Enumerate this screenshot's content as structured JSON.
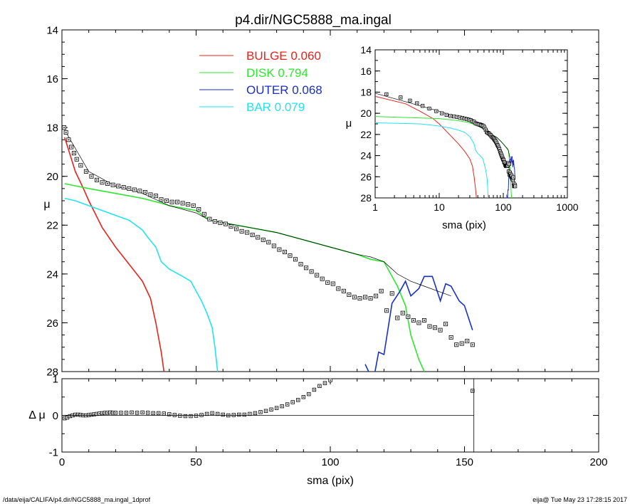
{
  "chart_data": [
    {
      "type": "scatter",
      "title": "p4.dir/NGC5888_ma.ingal",
      "xlabel": "",
      "ylabel": "μ",
      "xlim": [
        0,
        200
      ],
      "ylim": [
        28,
        14
      ],
      "y_inverted": true,
      "y_ticks": [
        14,
        16,
        18,
        20,
        22,
        24,
        26,
        28
      ],
      "x_ticks": [
        0,
        50,
        100,
        150,
        200
      ],
      "grid": false,
      "legend_position": "top-center",
      "legend": [
        {
          "label": "BULGE",
          "value": "0.060",
          "color": "#e8231c"
        },
        {
          "label": "DISK",
          "value": "0.794",
          "color": "#2ee62e"
        },
        {
          "label": "OUTER",
          "value": "0.068",
          "color": "#1a2fc8"
        },
        {
          "label": "BAR",
          "value": "0.079",
          "color": "#22e4f0"
        }
      ],
      "series": [
        {
          "name": "BULGE",
          "color": "#e8231c",
          "x": [
            1,
            3,
            5,
            8,
            10,
            15,
            20,
            25,
            30,
            33,
            35,
            37,
            38
          ],
          "y": [
            18.4,
            19.1,
            19.8,
            20.5,
            21.0,
            22.1,
            22.9,
            23.6,
            24.3,
            25.0,
            26.0,
            27.2,
            28.0
          ]
        },
        {
          "name": "DISK",
          "color": "#2ee62e",
          "x": [
            1,
            10,
            20,
            30,
            37,
            40,
            50,
            55,
            60,
            70,
            80,
            90,
            100,
            110,
            115,
            120,
            123,
            125,
            128,
            130,
            133,
            135
          ],
          "y": [
            20.3,
            20.5,
            20.7,
            20.9,
            21.1,
            21.2,
            21.4,
            21.8,
            21.9,
            22.1,
            22.3,
            22.6,
            22.9,
            23.2,
            23.4,
            23.5,
            24.1,
            24.5,
            25.3,
            26.5,
            27.5,
            28.0
          ]
        },
        {
          "name": "BAR",
          "color": "#22e4f0",
          "x": [
            1,
            5,
            10,
            15,
            20,
            25,
            30,
            32,
            35,
            37,
            40,
            45,
            48,
            50,
            52,
            54,
            56,
            57,
            58
          ],
          "y": [
            20.9,
            21.0,
            21.2,
            21.4,
            21.6,
            21.8,
            22.2,
            22.5,
            22.9,
            23.5,
            23.8,
            24.1,
            24.3,
            24.7,
            25.1,
            25.6,
            26.2,
            27.0,
            28.0
          ]
        },
        {
          "name": "OUTER",
          "color": "#1a2fc8",
          "x": [
            113,
            116,
            118,
            120,
            123,
            126,
            128,
            130,
            133,
            135,
            138,
            141,
            143,
            145,
            148,
            150,
            153
          ],
          "y": [
            27.7,
            28.4,
            27.2,
            27.3,
            25.2,
            24.7,
            24.3,
            24.9,
            24.6,
            24.1,
            24.1,
            25.1,
            24.4,
            24.5,
            25.1,
            25.3,
            26.3
          ]
        },
        {
          "name": "",
          "color": "#000000",
          "x": [
            1,
            10,
            20,
            30,
            40,
            50,
            55,
            60,
            70,
            80,
            90,
            100,
            110,
            115,
            120,
            125,
            130,
            135,
            140,
            145
          ],
          "y": [
            18.1,
            19.8,
            20.4,
            20.7,
            21.2,
            21.5,
            21.8,
            21.9,
            22.1,
            22.3,
            22.6,
            22.9,
            23.2,
            23.3,
            23.5,
            24.0,
            24.3,
            24.5,
            24.7,
            24.9
          ]
        },
        {
          "name": "",
          "type": "points",
          "color": "#000000",
          "x": [
            0.8,
            1.5,
            2.5,
            3.5,
            4.5,
            5.5,
            7,
            9,
            11,
            13,
            15,
            17,
            19,
            21,
            23,
            25,
            27,
            29,
            31,
            33,
            35,
            37,
            39,
            41,
            43,
            45,
            47,
            49,
            51,
            53,
            55,
            57,
            59,
            61,
            63,
            65,
            67,
            69,
            71,
            73,
            75,
            77,
            79,
            81,
            83,
            85,
            87,
            89,
            91,
            93,
            95,
            97,
            99,
            101,
            103,
            105,
            107,
            109,
            111,
            113,
            115,
            117,
            119,
            121,
            123,
            125,
            127,
            129,
            131,
            133,
            135,
            137,
            139,
            141,
            143,
            145,
            147,
            149,
            151,
            153
          ],
          "y": [
            18.0,
            18.2,
            18.5,
            18.8,
            19.05,
            19.3,
            19.55,
            19.8,
            20.0,
            20.15,
            20.25,
            20.3,
            20.35,
            20.4,
            20.45,
            20.5,
            20.55,
            20.6,
            20.65,
            20.75,
            20.8,
            20.95,
            21.0,
            21.05,
            21.05,
            21.1,
            21.15,
            21.2,
            21.35,
            21.55,
            21.75,
            21.85,
            21.9,
            21.95,
            22.05,
            22.15,
            22.25,
            22.3,
            22.4,
            22.5,
            22.6,
            22.7,
            22.85,
            23.0,
            23.1,
            23.25,
            23.4,
            23.6,
            23.75,
            23.9,
            24.05,
            24.2,
            24.35,
            24.4,
            24.6,
            24.7,
            24.85,
            24.95,
            25.0,
            24.95,
            25.0,
            24.9,
            24.7,
            25.5,
            24.8,
            25.8,
            25.6,
            25.75,
            25.9,
            26.0,
            25.9,
            26.15,
            26.2,
            26.3,
            26.05,
            26.6,
            26.9,
            26.85,
            26.75,
            26.9
          ]
        }
      ]
    },
    {
      "type": "scatter",
      "title": "",
      "xlabel": "sma (pix)",
      "ylabel": "Δ μ",
      "xlim": [
        0,
        200
      ],
      "ylim": [
        -1,
        1
      ],
      "y_ticks": [
        -1,
        0,
        1
      ],
      "x_ticks": [
        0,
        50,
        100,
        150,
        200
      ],
      "grid": false,
      "series": [
        {
          "name": "",
          "type": "points",
          "color": "#000000",
          "x": [
            1,
            2,
            3,
            4,
            5,
            6,
            7,
            8,
            9,
            10,
            11,
            12,
            13,
            14,
            15,
            16,
            17,
            18,
            19,
            20,
            22,
            24,
            26,
            28,
            30,
            32,
            34,
            36,
            38,
            40,
            42,
            44,
            46,
            48,
            50,
            52,
            54,
            56,
            58,
            60,
            62,
            64,
            66,
            68,
            70,
            72,
            74,
            76,
            78,
            80,
            82,
            84,
            86,
            88,
            90,
            92,
            94,
            96,
            98,
            100,
            153
          ],
          "y": [
            -0.08,
            -0.06,
            -0.02,
            0.0,
            0.02,
            0.02,
            0.01,
            0.0,
            0.0,
            0.01,
            0.02,
            0.03,
            0.04,
            0.05,
            0.06,
            0.07,
            0.07,
            0.08,
            0.07,
            0.07,
            0.07,
            0.07,
            0.08,
            0.07,
            0.08,
            0.07,
            0.06,
            0.06,
            0.05,
            0.03,
            0.01,
            -0.01,
            -0.02,
            -0.02,
            -0.01,
            0.01,
            0.04,
            0.06,
            0.04,
            0.02,
            0.0,
            0.01,
            0.02,
            0.02,
            0.04,
            0.06,
            0.09,
            0.12,
            0.16,
            0.2,
            0.25,
            0.3,
            0.36,
            0.42,
            0.5,
            0.58,
            0.7,
            0.8,
            0.88,
            0.96,
            0.67
          ]
        }
      ]
    },
    {
      "type": "line",
      "title": "",
      "xlabel": "sma (pix)",
      "ylabel": "μ",
      "xlim": [
        1,
        1000
      ],
      "x_scale": "log",
      "ylim": [
        28,
        14
      ],
      "y_inverted": true,
      "y_ticks": [
        14,
        16,
        18,
        20,
        22,
        24,
        26,
        28
      ],
      "x_ticks": [
        1,
        10,
        100,
        1000
      ],
      "grid": false,
      "series": [
        {
          "name": "BULGE",
          "color": "#e8231c",
          "x": [
            1,
            3,
            5,
            8,
            10,
            15,
            20,
            25,
            30,
            33,
            35,
            37,
            38
          ],
          "y": [
            18.4,
            19.1,
            19.8,
            20.5,
            21.0,
            22.1,
            22.9,
            23.6,
            24.3,
            25.0,
            26.0,
            27.2,
            28.0
          ]
        },
        {
          "name": "DISK",
          "color": "#2ee62e",
          "x": [
            1,
            10,
            20,
            30,
            37,
            40,
            50,
            55,
            60,
            70,
            80,
            90,
            100,
            110,
            115,
            120,
            123,
            125,
            128,
            130,
            133,
            135
          ],
          "y": [
            20.3,
            20.5,
            20.7,
            20.9,
            21.1,
            21.2,
            21.4,
            21.8,
            21.9,
            22.1,
            22.3,
            22.6,
            22.9,
            23.2,
            23.4,
            23.5,
            24.1,
            24.5,
            25.3,
            26.5,
            27.5,
            28.0
          ]
        },
        {
          "name": "BAR",
          "color": "#22e4f0",
          "x": [
            1,
            5,
            10,
            15,
            20,
            25,
            30,
            32,
            35,
            37,
            40,
            45,
            48,
            50,
            52,
            54,
            56,
            57,
            58
          ],
          "y": [
            20.9,
            21.0,
            21.2,
            21.4,
            21.6,
            21.8,
            22.2,
            22.5,
            22.9,
            23.5,
            23.8,
            24.1,
            24.3,
            24.7,
            25.1,
            25.6,
            26.2,
            27.0,
            28.0
          ]
        },
        {
          "name": "OUTER",
          "color": "#1a2fc8",
          "x": [
            113,
            116,
            118,
            120,
            123,
            126,
            128,
            130,
            133,
            135,
            138,
            141,
            143,
            145,
            148,
            150,
            153
          ],
          "y": [
            27.7,
            28.4,
            27.2,
            27.3,
            25.2,
            24.7,
            24.3,
            24.9,
            24.6,
            24.1,
            24.1,
            25.1,
            24.4,
            24.5,
            25.1,
            25.3,
            26.3
          ]
        },
        {
          "name": "",
          "color": "#000000",
          "x": [
            1,
            10,
            20,
            30,
            40,
            50,
            55,
            60,
            70,
            80,
            90,
            100,
            110,
            115,
            120,
            125,
            130,
            135,
            140,
            145
          ],
          "y": [
            18.1,
            19.8,
            20.4,
            20.7,
            21.2,
            21.5,
            21.8,
            21.9,
            22.1,
            22.3,
            22.6,
            22.9,
            23.2,
            23.3,
            23.5,
            24.0,
            24.3,
            24.5,
            24.7,
            24.9
          ]
        },
        {
          "name": "",
          "type": "points",
          "color": "#000000",
          "x": [
            0.8,
            1.5,
            2.5,
            3.5,
            4.5,
            5.5,
            7,
            9,
            11,
            13,
            15,
            17,
            19,
            21,
            23,
            25,
            27,
            29,
            31,
            33,
            35,
            37,
            39,
            41,
            43,
            45,
            47,
            49,
            51,
            53,
            55,
            57,
            59,
            61,
            63,
            65,
            67,
            69,
            71,
            73,
            75,
            77,
            79,
            81,
            83,
            85,
            87,
            89,
            91,
            93,
            95,
            97,
            99,
            101,
            103,
            105,
            107,
            109,
            111,
            113,
            115,
            117,
            119,
            121,
            123,
            125,
            127,
            129,
            131,
            133,
            135,
            137,
            139,
            141,
            143,
            145,
            147,
            149,
            151,
            153
          ],
          "y": [
            18.0,
            18.2,
            18.5,
            18.8,
            19.05,
            19.3,
            19.55,
            19.8,
            20.0,
            20.15,
            20.25,
            20.3,
            20.35,
            20.4,
            20.45,
            20.5,
            20.55,
            20.6,
            20.65,
            20.75,
            20.8,
            20.95,
            21.0,
            21.05,
            21.05,
            21.1,
            21.15,
            21.2,
            21.35,
            21.55,
            21.75,
            21.85,
            21.9,
            21.95,
            22.05,
            22.15,
            22.25,
            22.3,
            22.4,
            22.5,
            22.6,
            22.7,
            22.85,
            23.0,
            23.1,
            23.25,
            23.4,
            23.6,
            23.75,
            23.9,
            24.05,
            24.2,
            24.35,
            24.4,
            24.6,
            24.7,
            24.85,
            24.95,
            25.0,
            24.95,
            25.0,
            24.9,
            24.7,
            25.5,
            24.8,
            25.8,
            25.6,
            25.75,
            25.9,
            26.0,
            25.9,
            26.15,
            26.2,
            26.3,
            26.05,
            26.6,
            26.9,
            26.85,
            26.75,
            26.9
          ]
        }
      ]
    }
  ],
  "footer": {
    "left": "/data/eija/CALIFA/p4.dir/NGC5888_ma.ingal_1dprof",
    "right": "eija@  Tue May 23 17:28:15 2017"
  }
}
